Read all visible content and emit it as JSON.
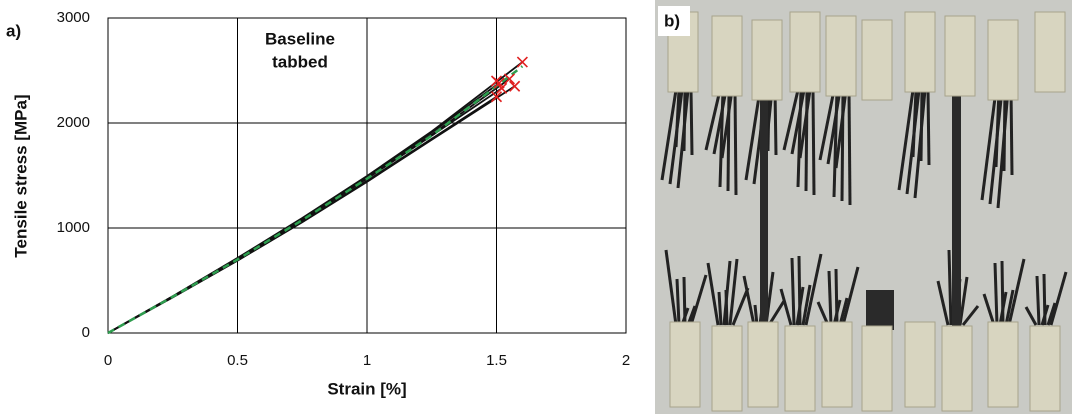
{
  "chart_data": {
    "type": "line",
    "panel_label": "a)",
    "annotation": [
      "Baseline",
      "tabbed"
    ],
    "xlabel": "Strain [%]",
    "ylabel": "Tensile stress [MPa]",
    "xlim": [
      0,
      2
    ],
    "ylim": [
      0,
      3000
    ],
    "xticks": [
      0,
      0.5,
      1,
      1.5,
      2
    ],
    "yticks": [
      0,
      1000,
      2000,
      3000
    ],
    "grid": true,
    "series": [
      {
        "color": "#111111",
        "x": [
          0,
          0.25,
          0.5,
          0.75,
          1,
          1.25,
          1.5
        ],
        "values": [
          0,
          340,
          690,
          1060,
          1450,
          1850,
          2250
        ]
      },
      {
        "color": "#111111",
        "x": [
          0,
          0.25,
          0.5,
          0.75,
          1,
          1.25,
          1.51
        ],
        "values": [
          0,
          350,
          710,
          1090,
          1490,
          1910,
          2380
        ]
      },
      {
        "color": "#111111",
        "x": [
          0,
          0.25,
          0.5,
          0.75,
          1,
          1.25,
          1.52
        ],
        "values": [
          0,
          345,
          700,
          1075,
          1470,
          1880,
          2330
        ]
      },
      {
        "color": "#111111",
        "x": [
          0,
          0.25,
          0.5,
          0.75,
          1,
          1.25,
          1.55
        ],
        "values": [
          0,
          345,
          705,
          1080,
          1475,
          1890,
          2420
        ]
      },
      {
        "color": "#111111",
        "x": [
          0,
          0.25,
          0.5,
          0.75,
          1,
          1.25,
          1.57
        ],
        "values": [
          0,
          340,
          690,
          1055,
          1440,
          1840,
          2350
        ]
      },
      {
        "color": "#111111",
        "x": [
          0,
          0.25,
          0.5,
          0.75,
          1,
          1.25,
          1.6
        ],
        "values": [
          0,
          350,
          715,
          1095,
          1495,
          1920,
          2580
        ]
      },
      {
        "color": "#2e9e4f",
        "dashed": true,
        "x": [
          0,
          0.25,
          0.5,
          0.75,
          1,
          1.25,
          1.6
        ],
        "values": [
          0,
          345,
          700,
          1075,
          1470,
          1880,
          2540
        ]
      }
    ],
    "failure_points": {
      "color": "#e02020",
      "x": [
        1.5,
        1.51,
        1.52,
        1.55,
        1.57,
        1.6,
        1.5
      ],
      "values": [
        2250,
        2380,
        2330,
        2420,
        2350,
        2580,
        2400
      ]
    }
  },
  "photo": {
    "label": "b)"
  }
}
